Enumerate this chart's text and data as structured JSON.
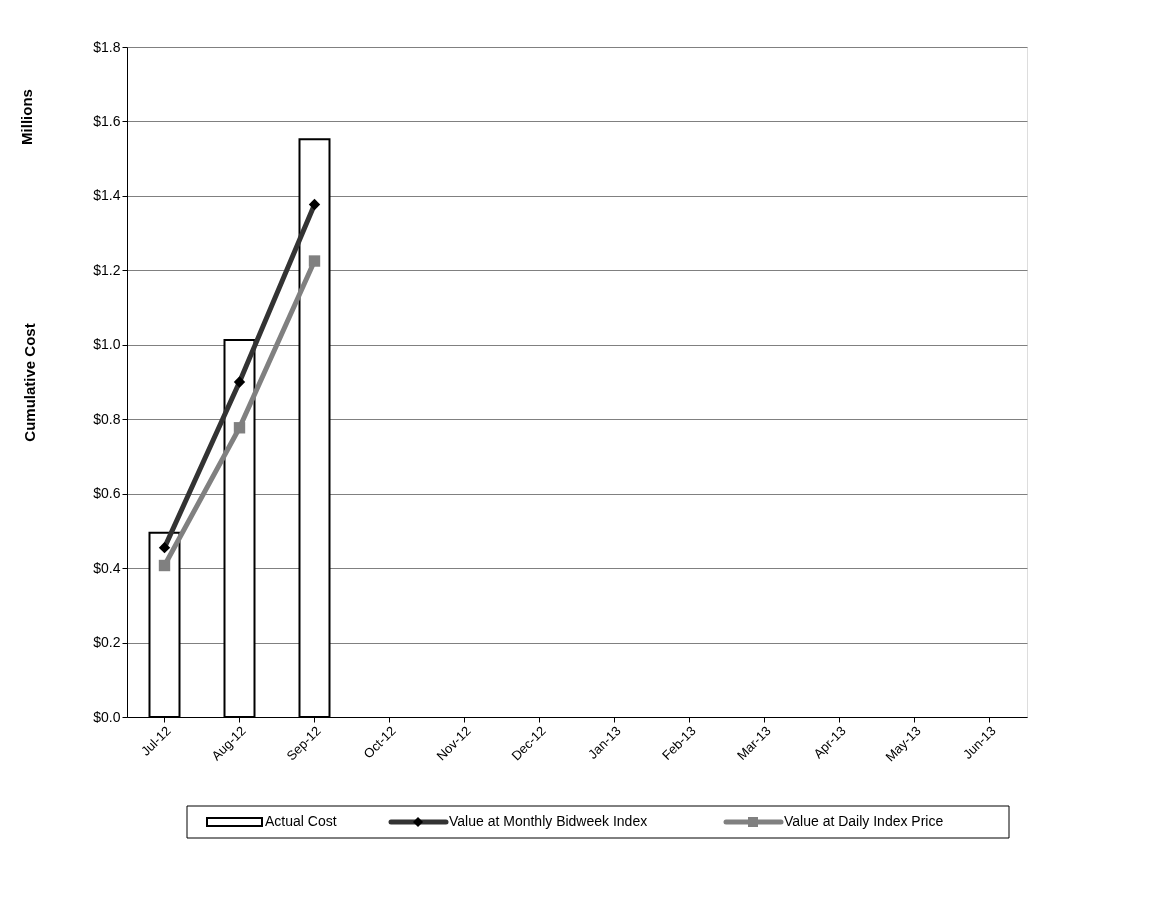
{
  "chart_data": {
    "type": "bar",
    "ylabel": "Cumulative Cost",
    "annotations": [
      "Millions"
    ],
    "categories": [
      "Jul-12",
      "Aug-12",
      "Sep-12",
      "Oct-12",
      "Nov-12",
      "Dec-12",
      "Jan-13",
      "Feb-13",
      "Mar-13",
      "Apr-13",
      "May-13",
      "Jun-13"
    ],
    "series": [
      {
        "name": "Actual Cost",
        "color": "#ffffff",
        "values": [
          0.495,
          1.013,
          1.552,
          null,
          null,
          null,
          null,
          null,
          null,
          null,
          null,
          null
        ]
      },
      {
        "name": "Value at Monthly Bidweek Index",
        "type": "line",
        "color": "#333333",
        "marker": "diamond",
        "values": [
          0.455,
          0.9,
          1.377,
          null,
          null,
          null,
          null,
          null,
          null,
          null,
          null,
          null
        ]
      },
      {
        "name": "Value at Daily Index Price",
        "type": "line",
        "color": "#808080",
        "marker": "square",
        "values": [
          0.407,
          0.777,
          1.225,
          null,
          null,
          null,
          null,
          null,
          null,
          null,
          null,
          null
        ]
      }
    ],
    "ylim": [
      0,
      1.8
    ],
    "yticks": [
      {
        "value": 0,
        "label": "$0.0"
      },
      {
        "value": 0.2,
        "label": "$0.2"
      },
      {
        "value": 0.4,
        "label": "$0.4"
      },
      {
        "value": 0.6,
        "label": "$0.6"
      },
      {
        "value": 0.8,
        "label": "$0.8"
      },
      {
        "value": 1.0,
        "label": "$1.0"
      },
      {
        "value": 1.2,
        "label": "$1.2"
      },
      {
        "value": 1.4,
        "label": "$1.4"
      },
      {
        "value": 1.6,
        "label": "$1.6"
      },
      {
        "value": 1.8,
        "label": "$1.8"
      }
    ],
    "grid": "y",
    "legend": "bottom",
    "line_style": "solid"
  }
}
